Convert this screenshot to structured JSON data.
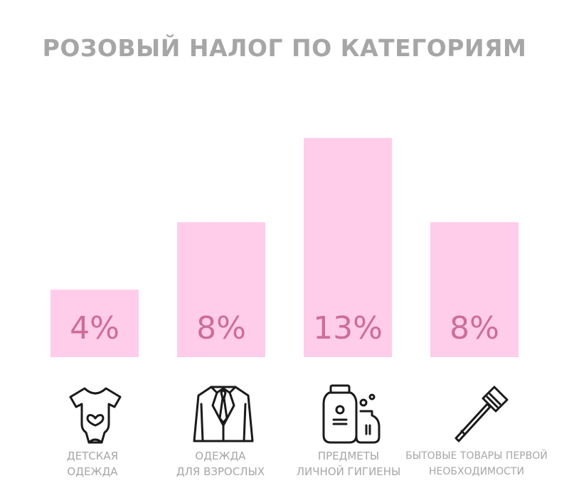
{
  "title": "РОЗОВЫЙ НАЛОГ ПО КАТЕГОРИЯМ",
  "colors": {
    "bar": "#ffcce9",
    "value_text": "#cc6d9a",
    "title": "#a6a6a6",
    "label": "#a6a6a6",
    "icon": "#1a1a1a"
  },
  "chart_data": {
    "type": "bar",
    "title": "РОЗОВЫЙ НАЛОГ ПО КАТЕГОРИЯМ",
    "categories": [
      "ДЕТСКАЯ ОДЕЖДА",
      "ОДЕЖДА ДЛЯ ВЗРОСЛЫХ",
      "ПРЕДМЕТЫ ЛИЧНОЙ ГИГИЕНЫ",
      "БЫТОВЫЕ ТОВАРЫ ПЕРВОЙ НЕОБХОДИМОСТИ"
    ],
    "values": [
      4,
      8,
      13,
      8
    ],
    "value_labels": [
      "4%",
      "8%",
      "13%",
      "8%"
    ],
    "unit": "%",
    "xlabel": "",
    "ylabel": "",
    "ylim": [
      0,
      13
    ],
    "grid": false,
    "legend": "none"
  },
  "categories": [
    {
      "line1": "ДЕТСКАЯ",
      "line2": "ОДЕЖДА",
      "icon": "baby-bodysuit-icon"
    },
    {
      "line1": "ОДЕЖДА",
      "line2": "ДЛЯ ВЗРОСЛЫХ",
      "icon": "suit-jacket-icon"
    },
    {
      "line1": "ПРЕДМЕТЫ",
      "line2": "ЛИЧНОЙ ГИГИЕНЫ",
      "icon": "shampoo-bottles-icon"
    },
    {
      "line1": "БЫТОВЫЕ ТОВАРЫ ПЕРВОЙ",
      "line2": "НЕОБХОДИМОСТИ",
      "icon": "razor-icon"
    }
  ]
}
